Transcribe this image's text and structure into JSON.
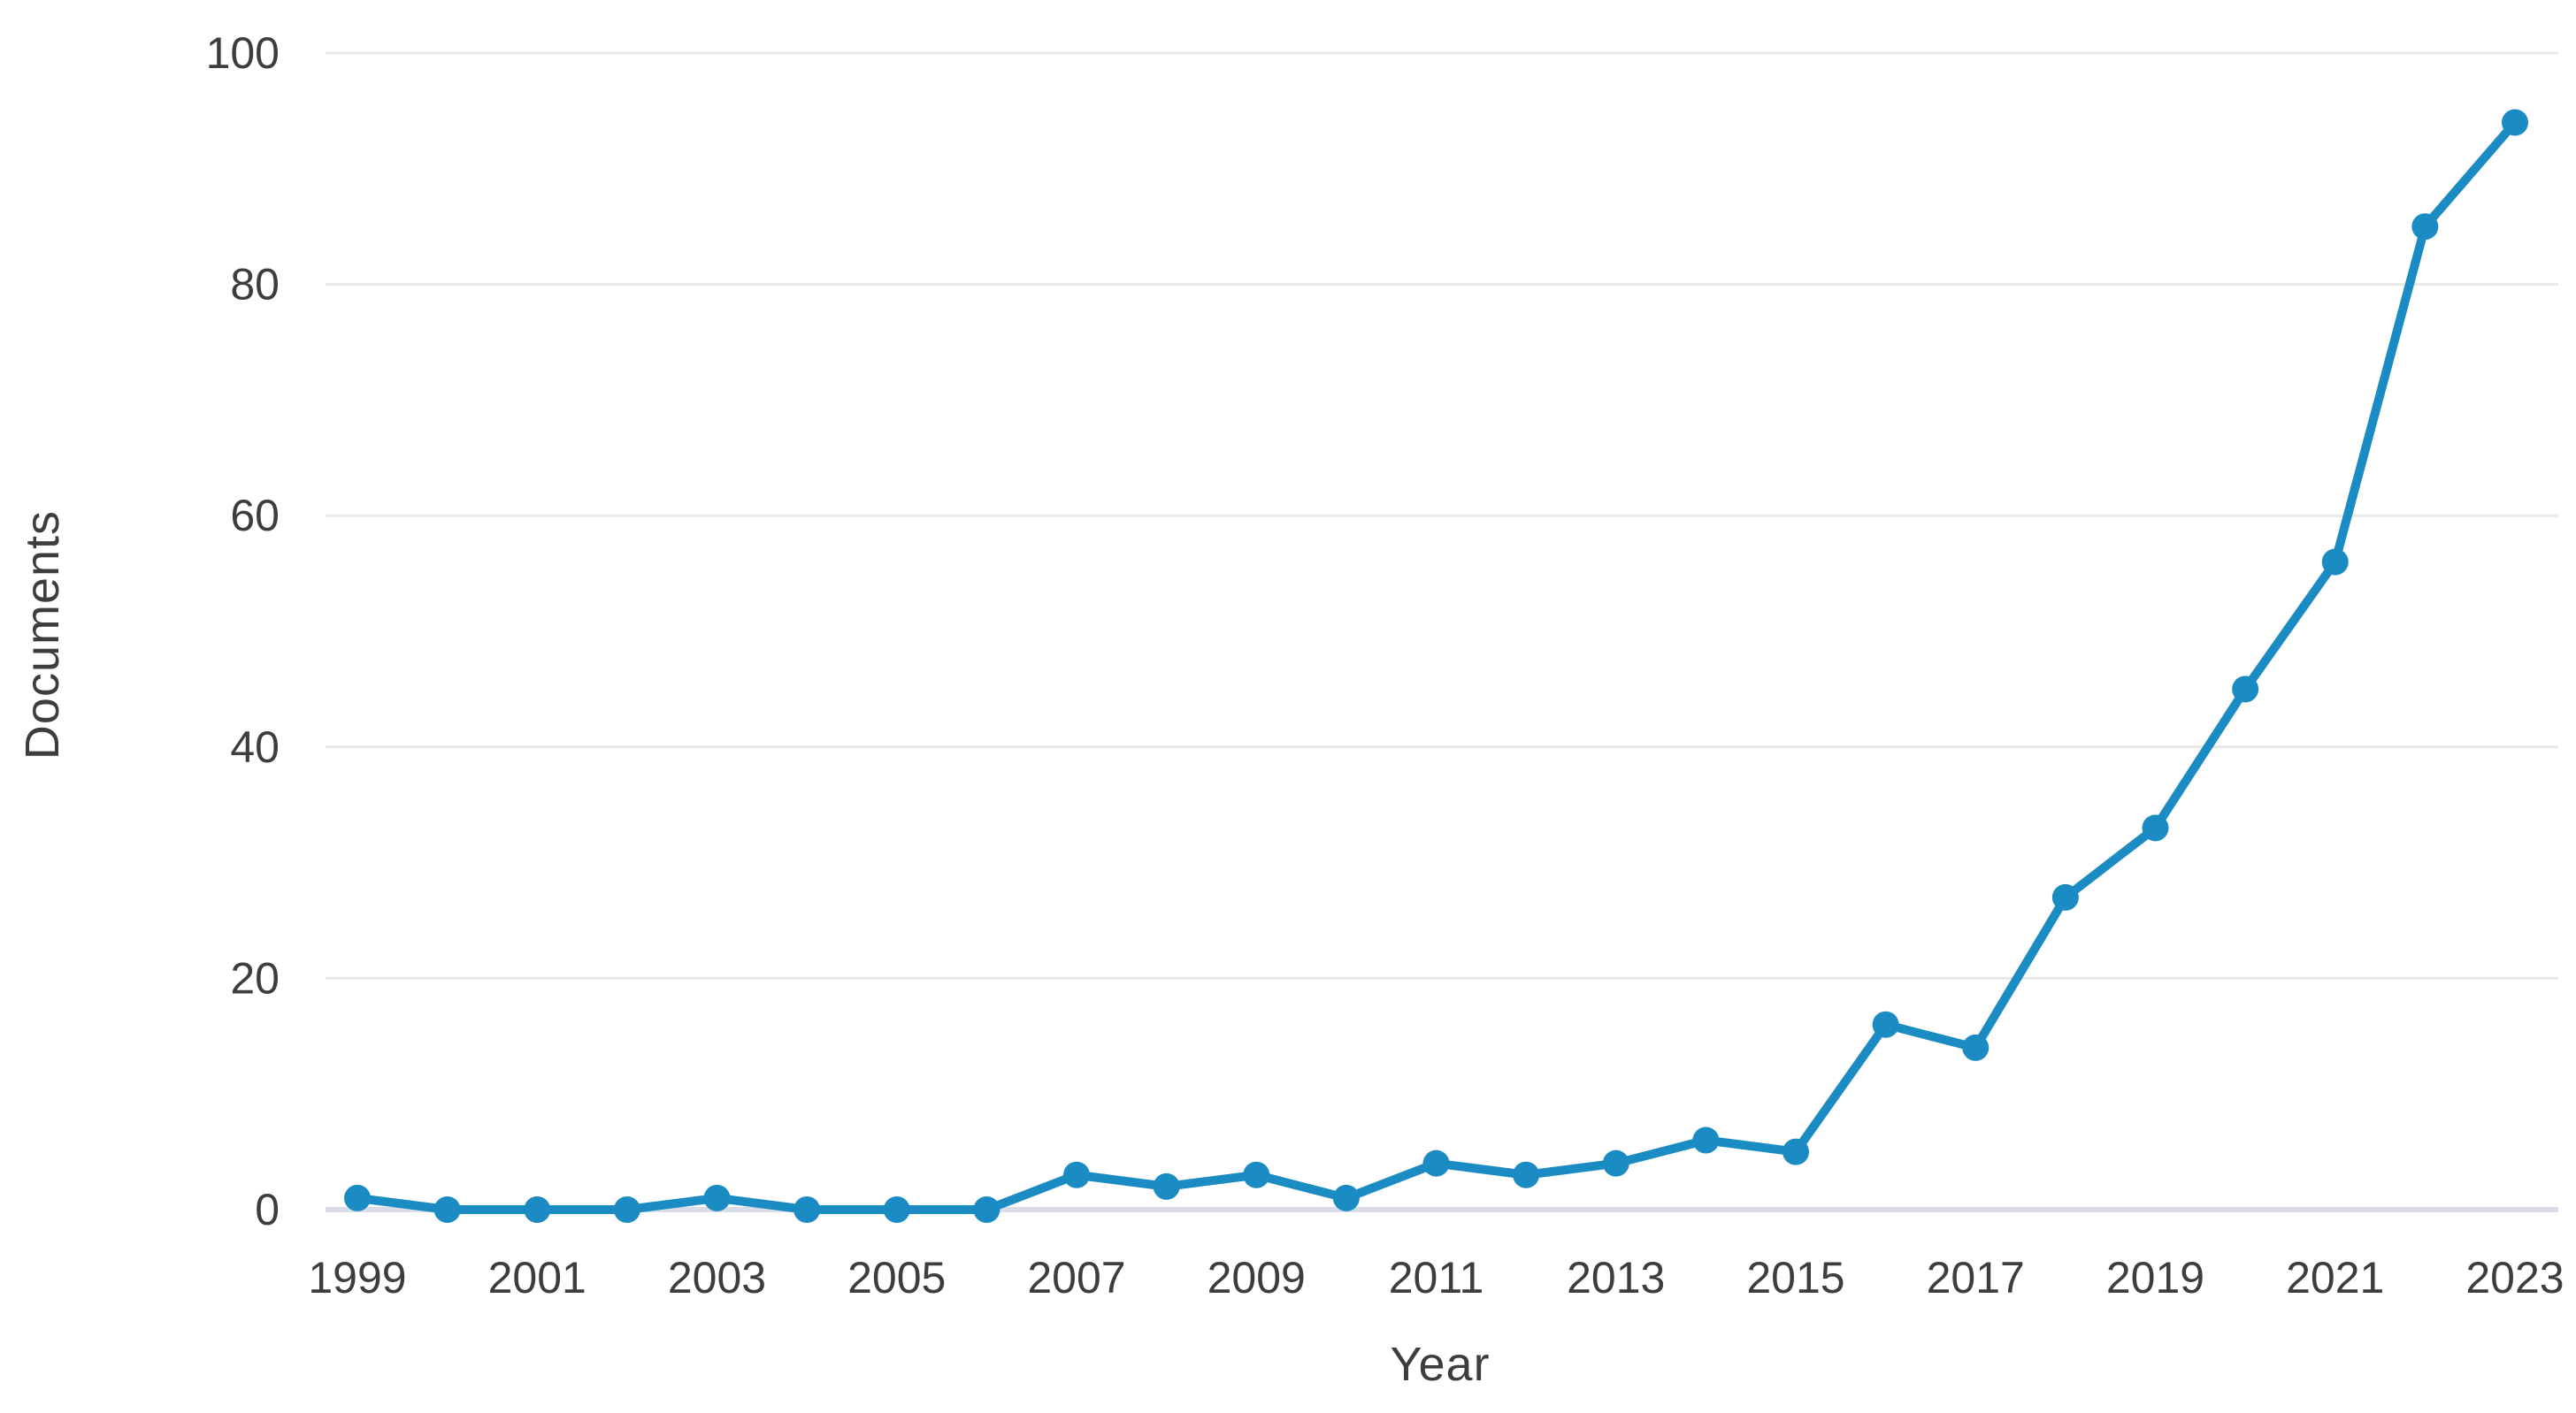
{
  "figure": {
    "background_color": "#ffffff",
    "text_color": "#3d3d3d",
    "line_color": "#1b8bc4",
    "gridline_color": "#e8e8e8",
    "baseline_color": "#d8dde8"
  },
  "chart_data": {
    "type": "line",
    "title": "",
    "xlabel": "Year",
    "ylabel": "Documents",
    "x": [
      1999,
      2000,
      2001,
      2002,
      2003,
      2004,
      2005,
      2006,
      2007,
      2008,
      2009,
      2010,
      2011,
      2012,
      2013,
      2014,
      2015,
      2016,
      2017,
      2018,
      2019,
      2020,
      2021,
      2022,
      2023
    ],
    "series": [
      {
        "name": "Documents",
        "values": [
          1,
          0,
          0,
          0,
          1,
          0,
          0,
          0,
          3,
          2,
          3,
          1,
          4,
          3,
          4,
          6,
          5,
          16,
          14,
          27,
          33,
          45,
          56,
          85,
          94
        ]
      }
    ],
    "ylim": [
      0,
      100
    ],
    "yticks": [
      0,
      20,
      40,
      60,
      80,
      100
    ],
    "xticks": [
      1999,
      2001,
      2003,
      2005,
      2007,
      2009,
      2011,
      2013,
      2015,
      2017,
      2019,
      2021,
      2023
    ],
    "grid": "horizontal",
    "legend": "none",
    "marker": "circle"
  }
}
